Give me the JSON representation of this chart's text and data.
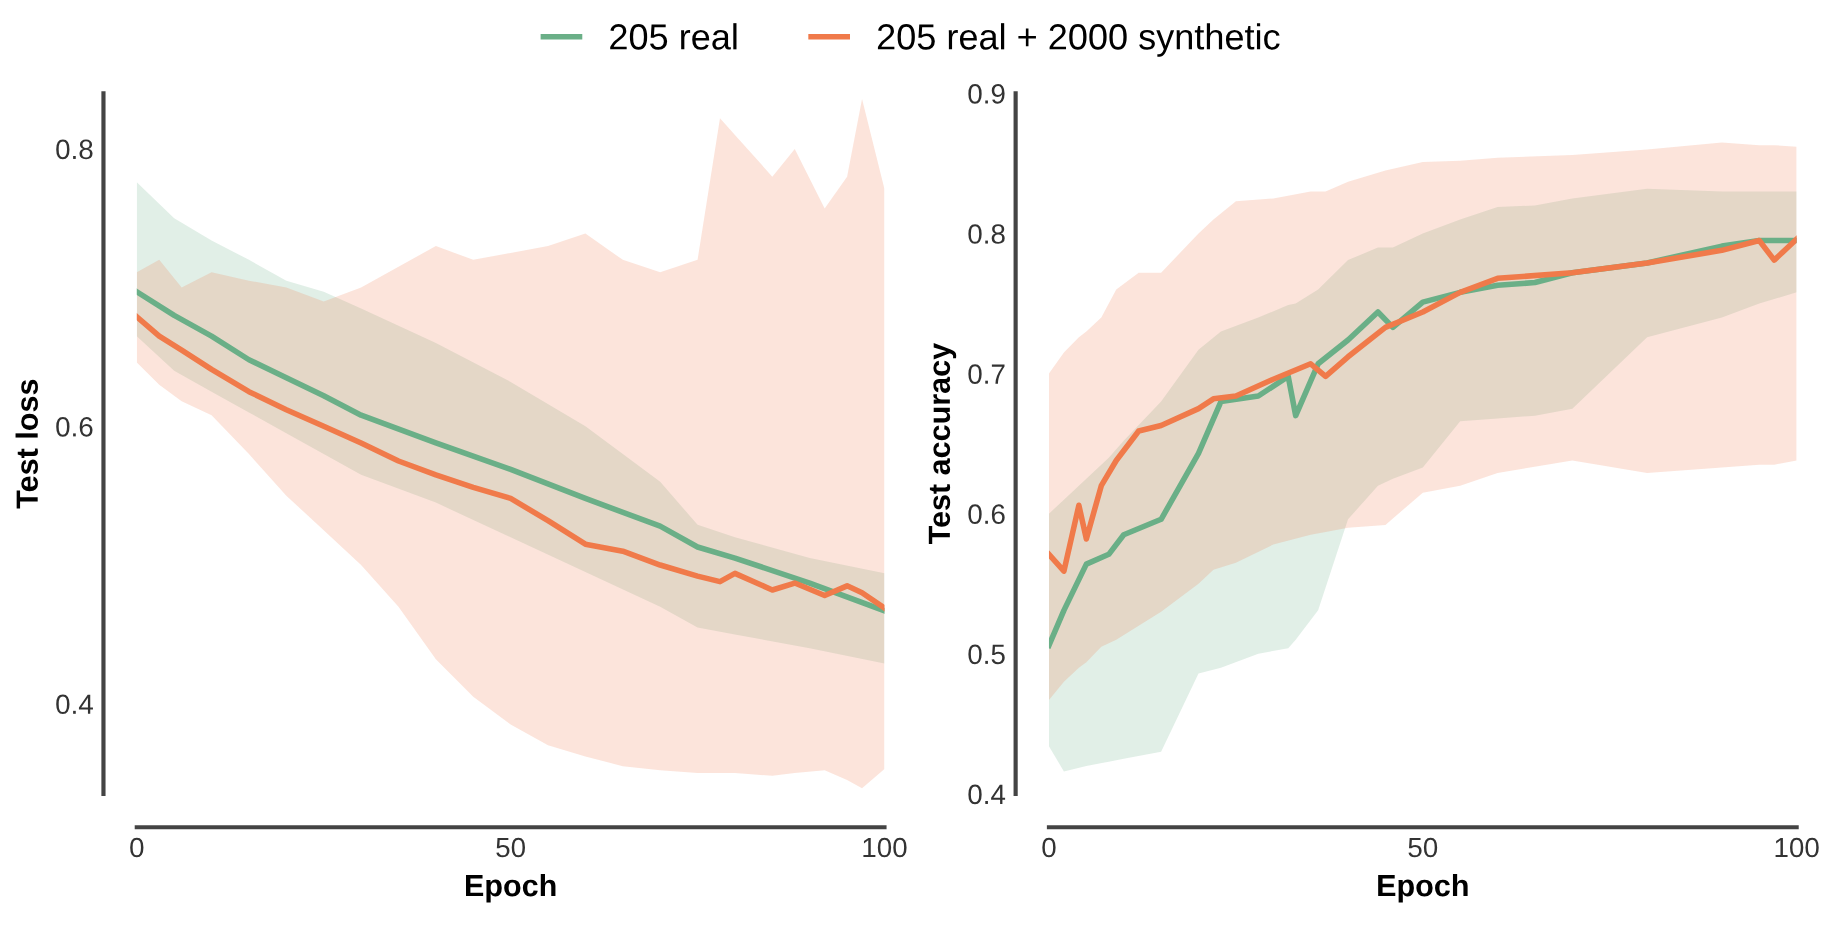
{
  "chart_data": [
    {
      "type": "line",
      "xlabel": "Epoch",
      "ylabel": "Test loss",
      "xlim": [
        0,
        100
      ],
      "ylim": [
        0.335,
        0.84
      ],
      "xticks": [
        0,
        50,
        100
      ],
      "yticks": [
        0.4,
        0.6,
        0.8
      ],
      "legend": "top",
      "grid": false,
      "marker": "none",
      "line_style": "solid",
      "series": [
        {
          "name": "205 real",
          "color": "#6aaf87",
          "x": [
            0,
            5,
            10,
            15,
            20,
            25,
            30,
            40,
            50,
            60,
            70,
            75,
            80,
            90,
            100
          ],
          "values": [
            0.697,
            0.68,
            0.665,
            0.648,
            0.635,
            0.622,
            0.608,
            0.588,
            0.569,
            0.548,
            0.528,
            0.513,
            0.505,
            0.487,
            0.467
          ],
          "upper": [
            0.776,
            0.75,
            0.734,
            0.72,
            0.705,
            0.697,
            0.685,
            0.66,
            0.632,
            0.6,
            0.56,
            0.529,
            0.52,
            0.505,
            0.494
          ],
          "lower": [
            0.665,
            0.64,
            0.625,
            0.61,
            0.595,
            0.58,
            0.565,
            0.545,
            0.52,
            0.495,
            0.47,
            0.455,
            0.45,
            0.44,
            0.429
          ]
        },
        {
          "name": "205 real + 2000 synthetic",
          "color": "#f07a4a",
          "x": [
            0,
            3,
            6,
            10,
            15,
            20,
            25,
            30,
            35,
            40,
            45,
            50,
            55,
            60,
            65,
            70,
            75,
            78,
            80,
            85,
            88,
            92,
            95,
            97,
            100
          ],
          "values": [
            0.679,
            0.665,
            0.655,
            0.641,
            0.625,
            0.612,
            0.6,
            0.588,
            0.575,
            0.565,
            0.556,
            0.548,
            0.532,
            0.515,
            0.51,
            0.5,
            0.492,
            0.488,
            0.494,
            0.482,
            0.487,
            0.478,
            0.485,
            0.48,
            0.469
          ],
          "upper": [
            0.711,
            0.72,
            0.7,
            0.711,
            0.705,
            0.7,
            0.69,
            0.7,
            0.715,
            0.73,
            0.72,
            0.725,
            0.73,
            0.739,
            0.72,
            0.711,
            0.72,
            0.822,
            0.81,
            0.78,
            0.8,
            0.757,
            0.78,
            0.836,
            0.771
          ],
          "lower": [
            0.646,
            0.63,
            0.618,
            0.608,
            0.58,
            0.55,
            0.525,
            0.5,
            0.47,
            0.432,
            0.405,
            0.385,
            0.37,
            0.362,
            0.355,
            0.352,
            0.35,
            0.35,
            0.35,
            0.348,
            0.35,
            0.352,
            0.345,
            0.339,
            0.353
          ]
        }
      ]
    },
    {
      "type": "line",
      "xlabel": "Epoch",
      "ylabel": "Test accuracy",
      "xlim": [
        0,
        100
      ],
      "ylim": [
        0.4,
        0.9
      ],
      "xticks": [
        0,
        50,
        100
      ],
      "yticks": [
        0.4,
        0.5,
        0.6,
        0.7,
        0.8,
        0.9
      ],
      "grid": false,
      "marker": "none",
      "line_style": "solid",
      "series": [
        {
          "color": "#6aaf87",
          "x": [
            0,
            2,
            5,
            8,
            10,
            15,
            20,
            23,
            28,
            32,
            33,
            36,
            40,
            44,
            46,
            50,
            55,
            60,
            65,
            70,
            80,
            90,
            95,
            100
          ],
          "values": [
            0.506,
            0.531,
            0.564,
            0.571,
            0.585,
            0.596,
            0.643,
            0.68,
            0.684,
            0.698,
            0.67,
            0.707,
            0.724,
            0.744,
            0.733,
            0.751,
            0.758,
            0.763,
            0.765,
            0.772,
            0.779,
            0.791,
            0.795,
            0.795
          ],
          "upper": [
            0.6,
            0.61,
            0.625,
            0.64,
            0.652,
            0.68,
            0.717,
            0.73,
            0.74,
            0.749,
            0.75,
            0.76,
            0.781,
            0.79,
            0.79,
            0.8,
            0.81,
            0.819,
            0.82,
            0.825,
            0.832,
            0.83,
            0.83,
            0.83
          ],
          "lower": [
            0.434,
            0.416,
            0.42,
            0.423,
            0.425,
            0.43,
            0.486,
            0.49,
            0.5,
            0.504,
            0.51,
            0.531,
            0.596,
            0.62,
            0.625,
            0.633,
            0.666,
            0.668,
            0.67,
            0.675,
            0.726,
            0.74,
            0.75,
            0.758
          ]
        },
        {
          "color": "#f07a4a",
          "x": [
            0,
            2,
            4,
            5,
            7,
            9,
            12,
            15,
            20,
            22,
            25,
            30,
            35,
            37,
            40,
            45,
            50,
            55,
            60,
            70,
            80,
            90,
            95,
            97,
            100
          ],
          "values": [
            0.571,
            0.559,
            0.606,
            0.582,
            0.62,
            0.638,
            0.659,
            0.663,
            0.675,
            0.682,
            0.684,
            0.696,
            0.707,
            0.698,
            0.712,
            0.733,
            0.744,
            0.758,
            0.768,
            0.772,
            0.779,
            0.788,
            0.795,
            0.781,
            0.796
          ],
          "upper": [
            0.7,
            0.715,
            0.726,
            0.73,
            0.74,
            0.76,
            0.772,
            0.772,
            0.8,
            0.81,
            0.823,
            0.825,
            0.83,
            0.83,
            0.837,
            0.845,
            0.851,
            0.852,
            0.854,
            0.856,
            0.86,
            0.865,
            0.863,
            0.863,
            0.862
          ],
          "lower": [
            0.467,
            0.48,
            0.49,
            0.494,
            0.505,
            0.51,
            0.52,
            0.53,
            0.55,
            0.56,
            0.565,
            0.578,
            0.585,
            0.587,
            0.59,
            0.592,
            0.615,
            0.62,
            0.629,
            0.638,
            0.629,
            0.633,
            0.635,
            0.635,
            0.638
          ]
        }
      ]
    }
  ]
}
